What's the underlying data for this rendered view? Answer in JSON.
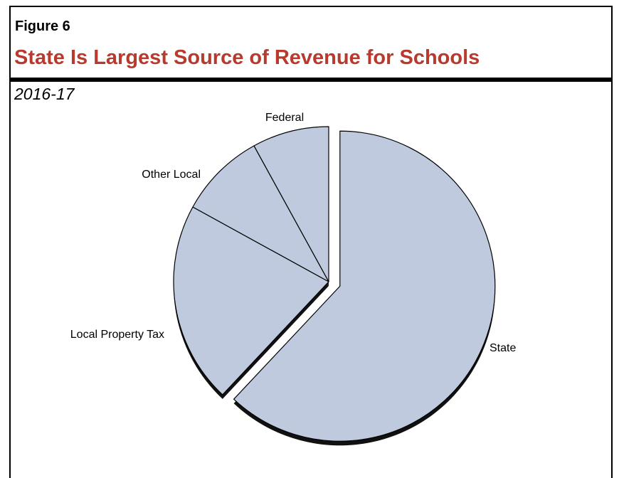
{
  "figure_label": "Figure 6",
  "title": "State Is Largest Source of Revenue for Schools",
  "subtitle": "2016-17",
  "colors": {
    "title": "#b83a2e",
    "slice_fill": "#bfcadf",
    "slice_stroke": "#000000",
    "shadow": "#111111"
  },
  "chart_data": {
    "type": "pie",
    "categories": [
      "State",
      "Local Property Tax",
      "Other Local",
      "Federal"
    ],
    "values": [
      62,
      21,
      9,
      8
    ],
    "exploded": [
      "State"
    ],
    "shadow": true
  }
}
